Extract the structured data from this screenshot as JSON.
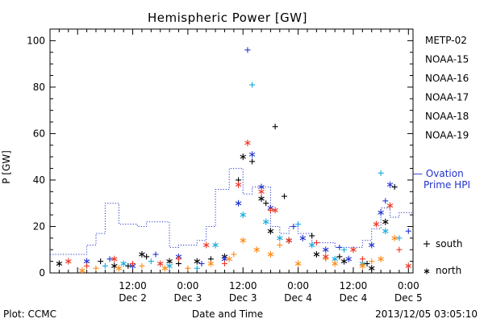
{
  "chart_data": {
    "type": "scatter",
    "title": "Hemispheric Power [GW]",
    "xlabel": "Date and Time",
    "ylabel": "P [GW]",
    "ylim": [
      0,
      105
    ],
    "xlim": [
      "2013-12-01 18:00",
      "2013-12-05 01:00"
    ],
    "yticks": [
      0,
      20,
      40,
      60,
      80,
      100
    ],
    "xticks": [
      {
        "x": "2013-12-02 12:00",
        "time": "12:00",
        "date": "Dec 2"
      },
      {
        "x": "2013-12-03 00:00",
        "time": "0:00",
        "date": "Dec 3"
      },
      {
        "x": "2013-12-03 12:00",
        "time": "12:00",
        "date": "Dec 3"
      },
      {
        "x": "2013-12-04 00:00",
        "time": "0:00",
        "date": "Dec 4"
      },
      {
        "x": "2013-12-04 12:00",
        "time": "12:00",
        "date": "Dec 4"
      },
      {
        "x": "2013-12-05 00:00",
        "time": "0:00",
        "date": "Dec 5"
      }
    ],
    "grid": false,
    "legend_position": "right",
    "marker_legend": [
      {
        "symbol": "+",
        "label": "south"
      },
      {
        "symbol": "*",
        "label": "north"
      }
    ],
    "reference_series": {
      "name": "— Ovation",
      "name2": "Prime HPI",
      "color": "#2233cc",
      "style": "dotted-step",
      "points": [
        [
          "2013-12-01 18:00",
          8
        ],
        [
          "2013-12-02 02:00",
          8
        ],
        [
          "2013-12-02 02:00",
          12
        ],
        [
          "2013-12-02 04:00",
          12
        ],
        [
          "2013-12-02 04:00",
          17
        ],
        [
          "2013-12-02 06:00",
          17
        ],
        [
          "2013-12-02 06:00",
          30
        ],
        [
          "2013-12-02 09:00",
          30
        ],
        [
          "2013-12-02 09:00",
          21
        ],
        [
          "2013-12-02 13:00",
          21
        ],
        [
          "2013-12-02 13:00",
          20
        ],
        [
          "2013-12-02 15:00",
          20
        ],
        [
          "2013-12-02 15:00",
          22
        ],
        [
          "2013-12-02 20:00",
          22
        ],
        [
          "2013-12-02 20:00",
          11
        ],
        [
          "2013-12-02 22:00",
          11
        ],
        [
          "2013-12-02 22:00",
          12
        ],
        [
          "2013-12-03 02:00",
          12
        ],
        [
          "2013-12-03 02:00",
          14
        ],
        [
          "2013-12-03 04:00",
          14
        ],
        [
          "2013-12-03 04:00",
          20
        ],
        [
          "2013-12-03 06:00",
          20
        ],
        [
          "2013-12-03 06:00",
          36
        ],
        [
          "2013-12-03 09:00",
          36
        ],
        [
          "2013-12-03 09:00",
          45
        ],
        [
          "2013-12-03 12:00",
          45
        ],
        [
          "2013-12-03 12:00",
          34
        ],
        [
          "2013-12-03 14:00",
          34
        ],
        [
          "2013-12-03 14:00",
          37
        ],
        [
          "2013-12-03 16:00",
          37
        ],
        [
          "2013-12-03 16:00",
          37
        ],
        [
          "2013-12-03 18:00",
          37
        ],
        [
          "2013-12-03 18:00",
          20
        ],
        [
          "2013-12-03 20:00",
          20
        ],
        [
          "2013-12-03 20:00",
          17
        ],
        [
          "2013-12-03 22:00",
          17
        ],
        [
          "2013-12-03 22:00",
          20
        ],
        [
          "2013-12-04 00:00",
          20
        ],
        [
          "2013-12-04 00:00",
          17
        ],
        [
          "2013-12-04 03:00",
          17
        ],
        [
          "2013-12-04 03:00",
          13
        ],
        [
          "2013-12-04 08:00",
          13
        ],
        [
          "2013-12-04 08:00",
          11
        ],
        [
          "2013-12-04 14:00",
          11
        ],
        [
          "2013-12-04 14:00",
          14
        ],
        [
          "2013-12-04 16:00",
          14
        ],
        [
          "2013-12-04 16:00",
          19
        ],
        [
          "2013-12-04 18:00",
          19
        ],
        [
          "2013-12-04 18:00",
          28
        ],
        [
          "2013-12-04 20:00",
          28
        ],
        [
          "2013-12-04 20:00",
          24
        ],
        [
          "2013-12-04 22:00",
          24
        ],
        [
          "2013-12-04 22:00",
          26
        ],
        [
          "2013-12-05 01:00",
          26
        ]
      ]
    },
    "series": [
      {
        "name": "METP-02",
        "color": "#000000",
        "south": [
          [
            "2013-12-02 05:00",
            5
          ],
          [
            "2013-12-02 11:00",
            3
          ],
          [
            "2013-12-02 15:00",
            7
          ],
          [
            "2013-12-02 22:00",
            4
          ],
          [
            "2013-12-03 05:00",
            6
          ],
          [
            "2013-12-03 11:00",
            40
          ],
          [
            "2013-12-03 14:00",
            48
          ],
          [
            "2013-12-03 17:00",
            30
          ],
          [
            "2013-12-03 19:00",
            63
          ],
          [
            "2013-12-03 21:00",
            33
          ],
          [
            "2013-12-04 03:00",
            16
          ],
          [
            "2013-12-04 09:00",
            7
          ],
          [
            "2013-12-04 15:00",
            4
          ],
          [
            "2013-12-04 21:00",
            37
          ]
        ],
        "north": [
          [
            "2013-12-01 20:00",
            4
          ],
          [
            "2013-12-02 08:00",
            3
          ],
          [
            "2013-12-02 14:00",
            8
          ],
          [
            "2013-12-02 20:00",
            5
          ],
          [
            "2013-12-03 02:00",
            5
          ],
          [
            "2013-12-03 08:00",
            7
          ],
          [
            "2013-12-03 12:00",
            50
          ],
          [
            "2013-12-03 16:00",
            32
          ],
          [
            "2013-12-03 18:00",
            18
          ],
          [
            "2013-12-03 22:00",
            14
          ],
          [
            "2013-12-04 04:00",
            8
          ],
          [
            "2013-12-04 10:00",
            5
          ],
          [
            "2013-12-04 16:00",
            2
          ],
          [
            "2013-12-04 19:00",
            22
          ]
        ]
      },
      {
        "name": "NOAA-15",
        "color": "#2233cc",
        "south": [
          [
            "2013-12-02 07:00",
            6
          ],
          [
            "2013-12-02 17:00",
            8
          ],
          [
            "2013-12-03 03:00",
            4
          ],
          [
            "2013-12-03 13:00",
            96
          ],
          [
            "2013-12-03 23:00",
            20
          ],
          [
            "2013-12-04 09:00",
            11
          ],
          [
            "2013-12-04 19:00",
            31
          ],
          [
            "2013-12-05 00:00",
            18
          ]
        ],
        "north": [
          [
            "2013-12-02 02:00",
            5
          ],
          [
            "2013-12-02 12:00",
            3
          ],
          [
            "2013-12-02 22:00",
            7
          ],
          [
            "2013-12-03 08:00",
            6
          ],
          [
            "2013-12-03 11:00",
            30
          ],
          [
            "2013-12-03 14:00",
            51
          ],
          [
            "2013-12-03 16:00",
            37
          ],
          [
            "2013-12-03 18:00",
            28
          ],
          [
            "2013-12-04 01:00",
            15
          ],
          [
            "2013-12-04 06:00",
            10
          ],
          [
            "2013-12-04 11:00",
            6
          ],
          [
            "2013-12-04 16:00",
            12
          ],
          [
            "2013-12-04 18:00",
            26
          ],
          [
            "2013-12-04 20:00",
            38
          ]
        ]
      },
      {
        "name": "NOAA-16",
        "color": "#11aadd",
        "south": [
          [
            "2013-12-02 06:00",
            3
          ],
          [
            "2013-12-02 16:00",
            5
          ],
          [
            "2013-12-03 02:00",
            2
          ],
          [
            "2013-12-03 14:00",
            81
          ],
          [
            "2013-12-04 00:00",
            21
          ],
          [
            "2013-12-04 10:00",
            10
          ],
          [
            "2013-12-04 18:00",
            43
          ],
          [
            "2013-12-04 22:00",
            15
          ]
        ],
        "north": [
          [
            "2013-12-02 10:00",
            4
          ],
          [
            "2013-12-02 20:00",
            3
          ],
          [
            "2013-12-03 06:00",
            12
          ],
          [
            "2013-12-03 12:00",
            25
          ],
          [
            "2013-12-03 17:00",
            22
          ],
          [
            "2013-12-03 20:00",
            15
          ],
          [
            "2013-12-04 03:00",
            12
          ],
          [
            "2013-12-04 08:00",
            6
          ],
          [
            "2013-12-04 14:00",
            4
          ],
          [
            "2013-12-04 19:00",
            18
          ]
        ]
      },
      {
        "name": "NOAA-17",
        "color": "#22dd88",
        "south": [],
        "north": []
      },
      {
        "name": "NOAA-18",
        "color": "#ff8811",
        "south": [
          [
            "2013-12-02 04:00",
            2
          ],
          [
            "2013-12-02 14:00",
            3
          ],
          [
            "2013-12-03 00:00",
            2
          ],
          [
            "2013-12-03 10:00",
            8
          ],
          [
            "2013-12-03 20:00",
            12
          ],
          [
            "2013-12-04 06:00",
            6
          ],
          [
            "2013-12-04 16:00",
            5
          ]
        ],
        "north": [
          [
            "2013-12-02 01:00",
            1
          ],
          [
            "2013-12-02 09:00",
            2
          ],
          [
            "2013-12-02 19:00",
            2
          ],
          [
            "2013-12-03 05:00",
            4
          ],
          [
            "2013-12-03 09:00",
            6
          ],
          [
            "2013-12-03 12:00",
            14
          ],
          [
            "2013-12-03 15:00",
            10
          ],
          [
            "2013-12-03 18:00",
            8
          ],
          [
            "2013-12-04 00:00",
            4
          ],
          [
            "2013-12-04 08:00",
            4
          ],
          [
            "2013-12-04 14:00",
            3
          ],
          [
            "2013-12-04 18:00",
            6
          ],
          [
            "2013-12-04 21:00",
            15
          ]
        ]
      },
      {
        "name": "NOAA-19",
        "color": "#ee3322",
        "south": [
          [
            "2013-12-02 02:00",
            3
          ],
          [
            "2013-12-02 12:00",
            4
          ],
          [
            "2013-12-02 22:00",
            6
          ],
          [
            "2013-12-03 08:00",
            4
          ],
          [
            "2013-12-03 18:00",
            27
          ],
          [
            "2013-12-04 04:00",
            13
          ],
          [
            "2013-12-04 14:00",
            6
          ],
          [
            "2013-12-04 22:00",
            10
          ]
        ],
        "north": [
          [
            "2013-12-01 22:00",
            5
          ],
          [
            "2013-12-02 08:00",
            6
          ],
          [
            "2013-12-02 18:00",
            4
          ],
          [
            "2013-12-03 04:00",
            12
          ],
          [
            "2013-12-03 11:00",
            38
          ],
          [
            "2013-12-03 13:00",
            56
          ],
          [
            "2013-12-03 16:00",
            35
          ],
          [
            "2013-12-03 19:00",
            27
          ],
          [
            "2013-12-03 22:00",
            14
          ],
          [
            "2013-12-04 06:00",
            7
          ],
          [
            "2013-12-04 12:00",
            10
          ],
          [
            "2013-12-04 17:00",
            21
          ],
          [
            "2013-12-04 20:00",
            29
          ],
          [
            "2013-12-05 00:00",
            3
          ]
        ]
      }
    ]
  },
  "footer": {
    "plot_label": "Plot: CCMC",
    "timestamp": "2013/12/05 03:05:10"
  }
}
